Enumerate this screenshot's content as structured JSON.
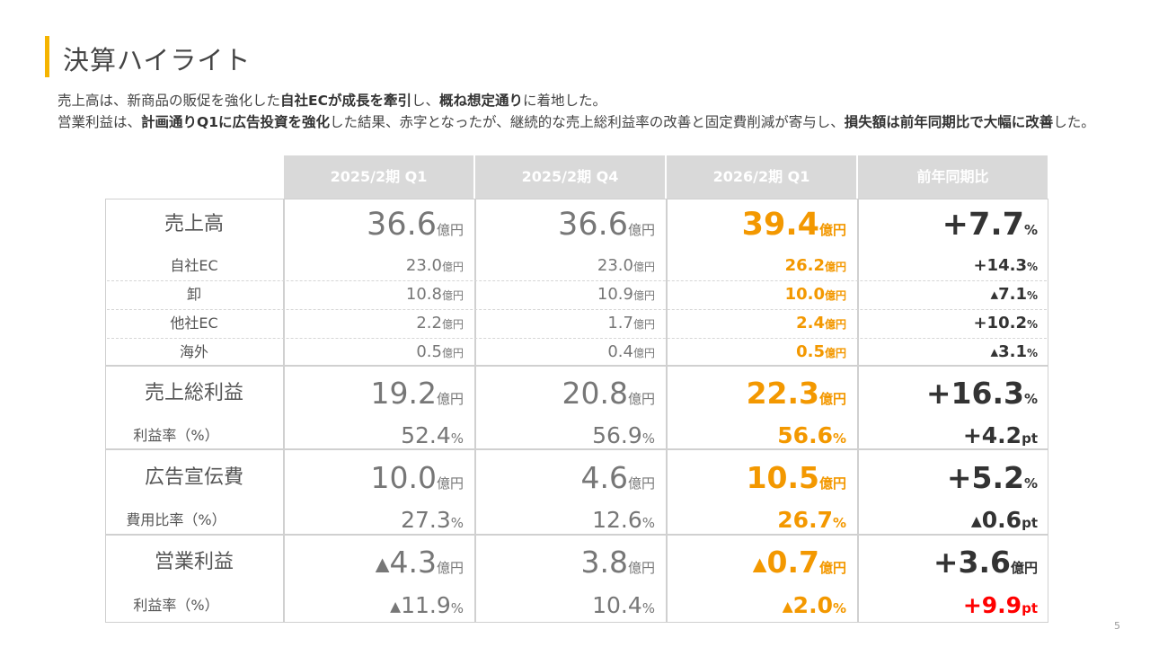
{
  "title": "決算ハイライト",
  "summary": {
    "line1": [
      {
        "t": "売上高は、新商品の販促を強化した",
        "b": false
      },
      {
        "t": "自社ECが成長を牽引",
        "b": true
      },
      {
        "t": "し、",
        "b": false
      },
      {
        "t": "概ね想定通り",
        "b": true
      },
      {
        "t": "に着地した。",
        "b": false
      }
    ],
    "line2": [
      {
        "t": "営業利益は、",
        "b": false
      },
      {
        "t": "計画通りQ1に広告投資を強化",
        "b": true
      },
      {
        "t": "した結果、赤字となったが、継続的な売上総利益率の改善と固定費削減が寄与し、",
        "b": false
      },
      {
        "t": "損失額は前年同期比で大幅に改善",
        "b": true
      },
      {
        "t": "した。",
        "b": false
      }
    ]
  },
  "table": {
    "headers": [
      "2025/2期 Q1",
      "2025/2期 Q4",
      "2026/2期 Q1",
      "前年同期比"
    ],
    "rows": [
      {
        "label": "売上高",
        "v": [
          [
            "36.6",
            "億円"
          ],
          [
            "36.6",
            "億円"
          ],
          [
            "39.4",
            "億円"
          ],
          [
            "+7.7",
            "%"
          ]
        ]
      },
      {
        "label": "自社EC",
        "v": [
          [
            "23.0",
            "億円"
          ],
          [
            "23.0",
            "億円"
          ],
          [
            "26.2",
            "億円"
          ],
          [
            "+14.3",
            "%"
          ]
        ]
      },
      {
        "label": "卸",
        "v": [
          [
            "10.8",
            "億円"
          ],
          [
            "10.9",
            "億円"
          ],
          [
            "10.0",
            "億円"
          ],
          [
            "▲7.1",
            "%"
          ]
        ]
      },
      {
        "label": "他社EC",
        "v": [
          [
            "2.2",
            "億円"
          ],
          [
            "1.7",
            "億円"
          ],
          [
            "2.4",
            "億円"
          ],
          [
            "+10.2",
            "%"
          ]
        ]
      },
      {
        "label": "海外",
        "v": [
          [
            "0.5",
            "億円"
          ],
          [
            "0.4",
            "億円"
          ],
          [
            "0.5",
            "億円"
          ],
          [
            "▲3.1",
            "%"
          ]
        ]
      },
      {
        "label": "売上総利益",
        "v": [
          [
            "19.2",
            "億円"
          ],
          [
            "20.8",
            "億円"
          ],
          [
            "22.3",
            "億円"
          ],
          [
            "+16.3",
            "%"
          ]
        ]
      },
      {
        "label": "利益率（%）",
        "v": [
          [
            "52.4",
            "%"
          ],
          [
            "56.9",
            "%"
          ],
          [
            "56.6",
            "%"
          ],
          [
            "+4.2",
            "pt"
          ]
        ]
      },
      {
        "label": "広告宣伝費",
        "v": [
          [
            "10.0",
            "億円"
          ],
          [
            "4.6",
            "億円"
          ],
          [
            "10.5",
            "億円"
          ],
          [
            "+5.2",
            "%"
          ]
        ]
      },
      {
        "label": "費用比率（%）",
        "v": [
          [
            "27.3",
            "%"
          ],
          [
            "12.6",
            "%"
          ],
          [
            "26.7",
            "%"
          ],
          [
            "▲0.6",
            "pt"
          ]
        ]
      },
      {
        "label": "営業利益",
        "v": [
          [
            "▲4.3",
            "億円"
          ],
          [
            "3.8",
            "億円"
          ],
          [
            "▲0.7",
            "億円"
          ],
          [
            "+3.6",
            "億円"
          ]
        ]
      },
      {
        "label": "利益率（%）",
        "v": [
          [
            "▲11.9",
            "%"
          ],
          [
            "10.4",
            "%"
          ],
          [
            "▲2.0",
            "%"
          ],
          [
            "+9.9",
            "pt"
          ]
        ]
      }
    ]
  },
  "page_number": "5",
  "colors": {
    "accent": "#f5b400",
    "highlight": "#f39800",
    "positive_red": "#ff0000",
    "header_bg": "#d9d9d9"
  }
}
